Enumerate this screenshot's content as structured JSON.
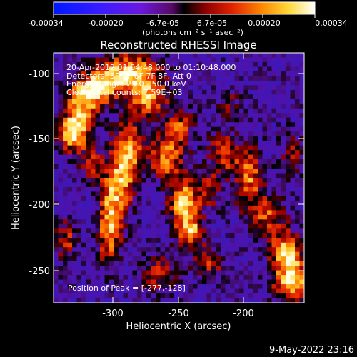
{
  "colorbar": {
    "tick_labels": [
      "-0.00034",
      "-0.00020",
      "-6.7e-05",
      "6.7e-05",
      "0.00020",
      "0.00034"
    ],
    "units_label": "(photons cm⁻² s⁻¹ asec⁻²)"
  },
  "title": "Reconstructed RHESSI Image",
  "annotation": {
    "time_range": "20-Apr-2012 01:04:48.000 to 01:10:48.000",
    "detectors": "Detectors: 3F 5F 6F 7F 8F, Att 0",
    "energy_range": "Energy Range: 25.0 - 50.0 keV",
    "method_counts": "Clean    Total counts: 7.59E+03",
    "peak": "Position of Peak = [-277,-128]"
  },
  "axes": {
    "xlabel": "Heliocentric X (arcsec)",
    "ylabel": "Heliocentric Y (arcsec)",
    "x_ticks": [
      "-300",
      "-250",
      "-200"
    ],
    "y_ticks": [
      "-100",
      "-150",
      "-200",
      "-250"
    ],
    "x_range": [
      -348,
      -207
    ],
    "y_range": [
      -273,
      -86
    ]
  },
  "footer": {
    "date": "9-May-2022 23:16"
  },
  "colors": {
    "background": "#000000",
    "text": "#ffffff"
  }
}
